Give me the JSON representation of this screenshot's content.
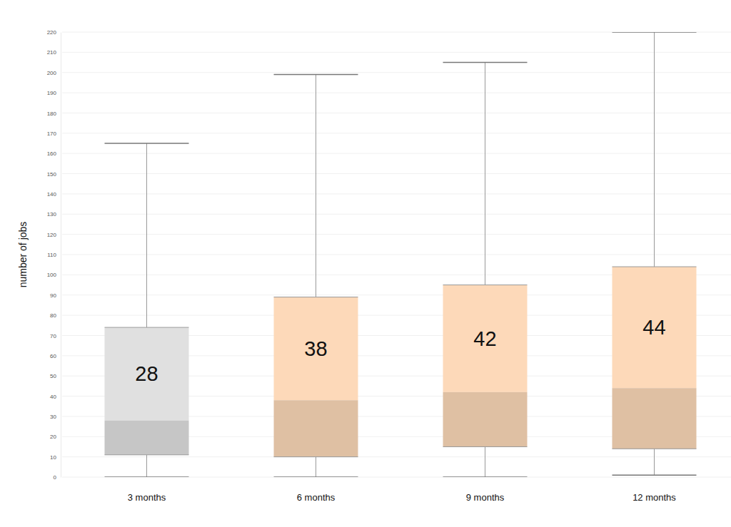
{
  "chart_data": {
    "type": "box",
    "y_label": "number of jobs",
    "categories": [
      "3 months",
      "6 months",
      "9 months",
      "12 months"
    ],
    "min": [
      0,
      0,
      0,
      1
    ],
    "q1": [
      11,
      10,
      15,
      14
    ],
    "median": [
      28,
      38,
      42,
      44
    ],
    "q3": [
      74,
      89,
      95,
      104
    ],
    "max": [
      165,
      199,
      205,
      220
    ],
    "colors": [
      "#e0e0e0",
      "#fdd9b9",
      "#fdd9b9",
      "#fdd9b9"
    ],
    "ylim": [
      0,
      220
    ],
    "yticks": [
      0,
      10,
      20,
      30,
      40,
      50,
      60,
      70,
      80,
      90,
      100,
      110,
      120,
      130,
      140,
      150,
      160,
      170,
      180,
      190,
      200,
      210,
      220
    ],
    "grid": true,
    "data_labels": true
  }
}
